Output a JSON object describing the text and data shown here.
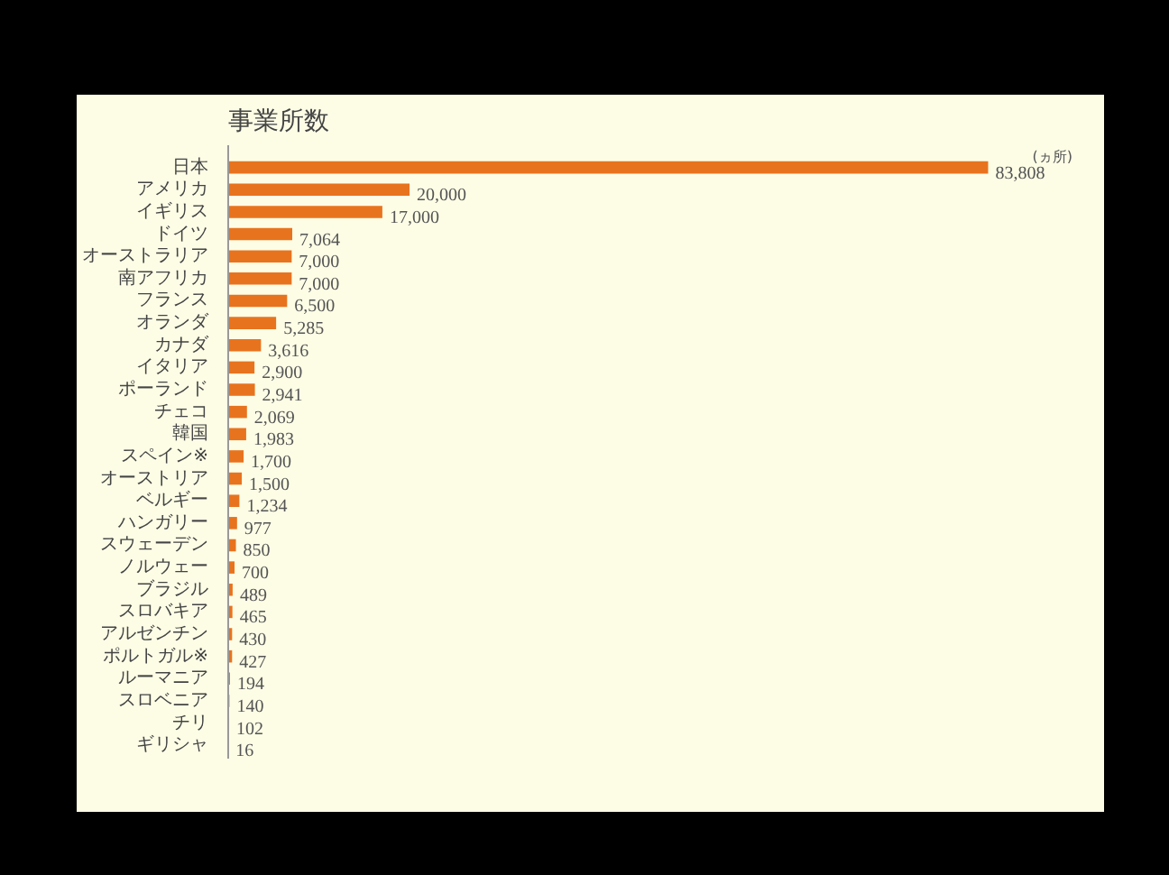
{
  "chart_data": {
    "type": "bar",
    "orientation": "horizontal",
    "title": "事業所数",
    "annotations": [
      "(ヵ所)"
    ],
    "categories": [
      "日本",
      "アメリカ",
      "イギリス",
      "ドイツ",
      "オーストラリア",
      "南アフリカ",
      "フランス",
      "オランダ",
      "カナダ",
      "イタリア",
      "ポーランド",
      "チェコ",
      "韓国",
      "スペイン※",
      "オーストリア",
      "ベルギー",
      "ハンガリー",
      "スウェーデン",
      "ノルウェー",
      "ブラジル",
      "スロバキア",
      "アルゼンチン",
      "ポルトガル※",
      "ルーマニア",
      "スロベニア",
      "チリ",
      "ギリシャ"
    ],
    "values": [
      83808,
      20000,
      17000,
      7064,
      7000,
      7000,
      6500,
      5285,
      3616,
      2900,
      2941,
      2069,
      1983,
      1700,
      1500,
      1234,
      977,
      850,
      700,
      489,
      465,
      430,
      427,
      194,
      140,
      102,
      16
    ],
    "value_labels": [
      "83,808",
      "20,000",
      "17,000",
      "7,064",
      "7,000",
      "7,000",
      "6,500",
      "5,285",
      "3,616",
      "2,900",
      "2,941",
      "2,069",
      "1,983",
      "1,700",
      "1,500",
      "1,234",
      "977",
      "850",
      "700",
      "489",
      "465",
      "430",
      "427",
      "194",
      "140",
      "102",
      "16"
    ],
    "color": "#e8731e",
    "grid": false
  }
}
